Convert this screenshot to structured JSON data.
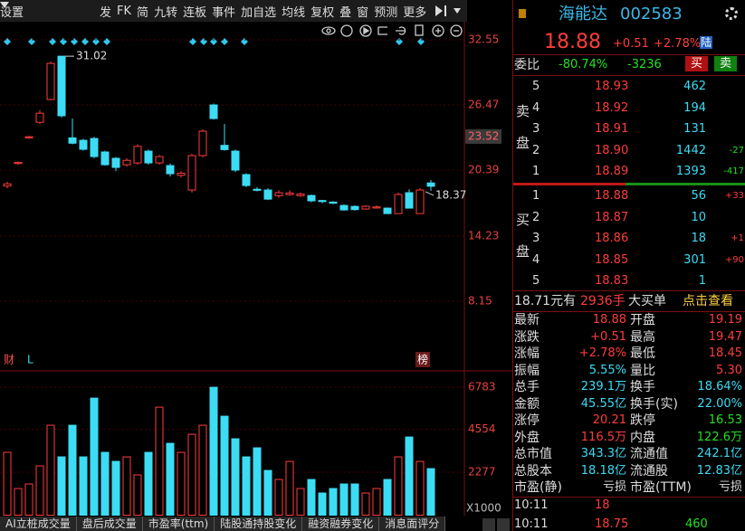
{
  "toolbar": {
    "settings": "设置",
    "items": [
      "发",
      "FK",
      "简",
      "九转",
      "连板",
      "事件",
      "加自选",
      "均线",
      "复权",
      "叠",
      "窗",
      "预测",
      "更多"
    ]
  },
  "chart": {
    "price_ylim": [
      8.15,
      32.55
    ],
    "price_ticks": [
      32.55,
      26.47,
      20.39,
      14.23,
      8.15
    ],
    "price_marker": 23.52,
    "last_price_label": 18.37,
    "high_label": 31.02,
    "flags": [
      "财",
      "L",
      "榜"
    ],
    "volume_ylim": [
      0,
      6783
    ],
    "volume_ticks": [
      6783,
      4554,
      2277
    ],
    "volume_unit": "X1000",
    "up_color": "#ff3c3c",
    "down_color": "#3cdcf4",
    "candles": [
      {
        "open": 18.9,
        "close": 19.1,
        "high": 19.3,
        "low": 18.7
      },
      {
        "open": 21.0,
        "close": 21.1,
        "high": 21.2,
        "low": 20.9
      },
      {
        "open": 23.4,
        "close": 23.5,
        "high": 23.6,
        "low": 23.3
      },
      {
        "open": 24.85,
        "close": 25.7,
        "high": 26.0,
        "low": 24.7
      },
      {
        "open": 26.98,
        "close": 30.35,
        "high": 30.5,
        "low": 26.9
      },
      {
        "open": 31.02,
        "close": 25.46,
        "high": 31.02,
        "low": 25.3
      },
      {
        "open": 23.4,
        "close": 22.9,
        "high": 25.2,
        "low": 22.8
      },
      {
        "open": 23.17,
        "close": 22.33,
        "high": 23.3,
        "low": 22.2
      },
      {
        "open": 23.34,
        "close": 21.65,
        "high": 23.5,
        "low": 21.5
      },
      {
        "open": 22.08,
        "close": 20.89,
        "high": 22.2,
        "low": 20.8
      },
      {
        "open": 21.49,
        "close": 20.64,
        "high": 21.6,
        "low": 20.3
      },
      {
        "open": 20.89,
        "close": 21.3,
        "high": 21.5,
        "low": 20.7
      },
      {
        "open": 21.06,
        "close": 22.6,
        "high": 22.8,
        "low": 20.9
      },
      {
        "open": 22.16,
        "close": 21.06,
        "high": 22.3,
        "low": 20.9
      },
      {
        "open": 21.06,
        "close": 21.65,
        "high": 21.8,
        "low": 20.9
      },
      {
        "open": 20.81,
        "close": 20.05,
        "high": 21.0,
        "low": 19.8
      },
      {
        "open": 19.9,
        "close": 20.1,
        "high": 20.3,
        "low": 19.7
      },
      {
        "open": 18.53,
        "close": 21.74,
        "high": 21.9,
        "low": 18.3
      },
      {
        "open": 21.74,
        "close": 24.02,
        "high": 24.2,
        "low": 21.6
      },
      {
        "open": 26.47,
        "close": 25.2,
        "high": 26.6,
        "low": 25.1
      },
      {
        "open": 22.7,
        "close": 22.3,
        "high": 24.7,
        "low": 22.2
      },
      {
        "open": 22.16,
        "close": 20.39,
        "high": 22.3,
        "low": 20.2
      },
      {
        "open": 19.97,
        "close": 18.95,
        "high": 20.1,
        "low": 18.8
      },
      {
        "open": 18.6,
        "close": 18.5,
        "high": 18.8,
        "low": 18.4
      },
      {
        "open": 18.53,
        "close": 17.68,
        "high": 18.7,
        "low": 17.6
      },
      {
        "open": 18.0,
        "close": 18.28,
        "high": 18.5,
        "low": 17.8
      },
      {
        "open": 18.1,
        "close": 18.25,
        "high": 18.5,
        "low": 18.0
      },
      {
        "open": 18.0,
        "close": 18.15,
        "high": 18.3,
        "low": 17.9
      },
      {
        "open": 18.02,
        "close": 17.52,
        "high": 18.1,
        "low": 17.4
      },
      {
        "open": 17.55,
        "close": 17.45,
        "high": 17.6,
        "low": 17.3
      },
      {
        "open": 17.4,
        "close": 17.3,
        "high": 17.5,
        "low": 17.2
      },
      {
        "open": 17.09,
        "close": 16.67,
        "high": 17.2,
        "low": 16.6
      },
      {
        "open": 17.0,
        "close": 16.7,
        "high": 17.1,
        "low": 16.6
      },
      {
        "open": 16.76,
        "close": 17.01,
        "high": 17.1,
        "low": 16.7
      },
      {
        "open": 16.85,
        "close": 16.95,
        "high": 17.1,
        "low": 16.8
      },
      {
        "open": 16.84,
        "close": 16.33,
        "high": 16.9,
        "low": 16.3
      },
      {
        "open": 16.33,
        "close": 18.11,
        "high": 18.3,
        "low": 16.3
      },
      {
        "open": 18.28,
        "close": 16.84,
        "high": 18.6,
        "low": 16.8
      },
      {
        "open": 16.33,
        "close": 18.53,
        "high": 18.7,
        "low": 16.3
      },
      {
        "open": 19.19,
        "close": 18.88,
        "high": 19.47,
        "low": 18.45
      }
    ],
    "volumes": [
      3329,
      1413,
      1653,
      2611,
      4766,
      3090,
      4766,
      3090,
      6203,
      3329,
      2850,
      3090,
      2132,
      3329,
      5724,
      3808,
      3329,
      4287,
      4766,
      6778,
      5245,
      4048,
      3090,
      3569,
      2371,
      1892,
      2850,
      1413,
      1892,
      1174,
      1413,
      1653,
      1653,
      1174,
      1413,
      1892,
      3090,
      4143,
      2850,
      2467
    ]
  },
  "quote": {
    "name": "海能达",
    "code": "002583",
    "price": "18.88",
    "change": "+0.51",
    "change_pct": "+2.78%",
    "badge": "陆",
    "weibi_label": "委比",
    "weibi": "-80.74%",
    "weicha": "-3236",
    "buy_btn": "买",
    "sell_btn": "卖",
    "sell_label": "卖盘",
    "buy_label": "买盘",
    "asks": [
      {
        "level": "5",
        "price": "18.93",
        "volume": "462"
      },
      {
        "level": "4",
        "price": "18.92",
        "volume": "194"
      },
      {
        "level": "3",
        "price": "18.91",
        "volume": "131"
      },
      {
        "level": "2",
        "price": "18.90",
        "volume": "1442",
        "delta": "-27"
      },
      {
        "level": "1",
        "price": "18.89",
        "volume": "1393",
        "delta": "-417"
      }
    ],
    "bids": [
      {
        "level": "1",
        "price": "18.88",
        "volume": "56",
        "delta": "+33"
      },
      {
        "level": "2",
        "price": "18.87",
        "volume": "10"
      },
      {
        "level": "3",
        "price": "18.86",
        "volume": "18",
        "delta": "+1"
      },
      {
        "level": "4",
        "price": "18.85",
        "volume": "301",
        "delta": "+90"
      },
      {
        "level": "5",
        "price": "18.83",
        "volume": "1"
      }
    ],
    "big_order": {
      "price": "18.71元有",
      "lots": "2936手",
      "label": "大买单",
      "link": "点击查看"
    },
    "stats": [
      {
        "label": "最新",
        "value": "18.88",
        "color": "#ff3c3c"
      },
      {
        "label": "开盘",
        "value": "19.19",
        "color": "#ff3c3c"
      },
      {
        "label": "涨跌",
        "value": "+0.51",
        "color": "#ff3c3c"
      },
      {
        "label": "最高",
        "value": "19.47",
        "color": "#ff3c3c"
      },
      {
        "label": "涨幅",
        "value": "+2.78%",
        "color": "#ff3c3c"
      },
      {
        "label": "最低",
        "value": "18.45",
        "color": "#ff3c3c"
      },
      {
        "label": "振幅",
        "value": "5.55%",
        "color": "#3cdcf4"
      },
      {
        "label": "量比",
        "value": "5.30",
        "color": "#ff3c3c"
      },
      {
        "label": "总手",
        "value": "239.1万",
        "color": "#3cdcf4"
      },
      {
        "label": "换手",
        "value": "18.64%",
        "color": "#3cdcf4"
      },
      {
        "label": "金额",
        "value": "45.55亿",
        "color": "#3cdcf4"
      },
      {
        "label": "换手(实)",
        "value": "22.00%",
        "color": "#3cdcf4"
      },
      {
        "label": "涨停",
        "value": "20.21",
        "color": "#ff3c3c"
      },
      {
        "label": "跌停",
        "value": "16.53",
        "color": "#22e022"
      },
      {
        "label": "外盘",
        "value": "116.5万",
        "color": "#ff3c3c"
      },
      {
        "label": "内盘",
        "value": "122.6万",
        "color": "#22e022"
      },
      {
        "label": "总市值",
        "value": "343.3亿",
        "color": "#3cdcf4"
      },
      {
        "label": "流通值",
        "value": "242.1亿",
        "color": "#3cdcf4"
      },
      {
        "label": "总股本",
        "value": "18.18亿",
        "color": "#3cdcf4"
      },
      {
        "label": "流通股",
        "value": "12.83亿",
        "color": "#3cdcf4"
      },
      {
        "label": "市盈(静)",
        "value": "亏损",
        "color": "#dddddd"
      },
      {
        "label": "市盈(TTM)",
        "value": "亏损",
        "color": "#dddddd"
      }
    ],
    "ticks": [
      [
        "10:11",
        "18"
      ],
      [
        "10:11",
        "18.75",
        "460"
      ]
    ]
  },
  "tabs": [
    "AI立桩成交量",
    "盘后成交量",
    "市盈率(ttm)",
    "陆股通持股变化",
    "融资融券变化",
    "消息面评分"
  ]
}
